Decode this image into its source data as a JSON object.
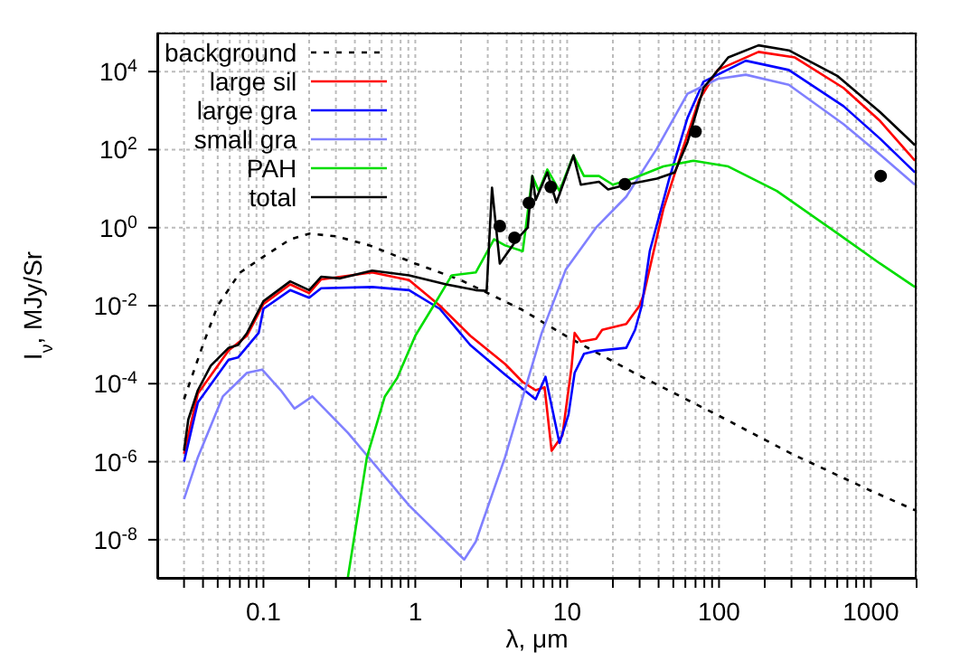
{
  "chart_data": {
    "type": "line",
    "xlabel": "λ, μm",
    "ylabel": "I$_{ν}$, MJy/Sr",
    "log": "xy",
    "grid": true,
    "legend": "top left",
    "xlim": [
      0.02,
      2000
    ],
    "ylim": [
      1e-09,
      100000
    ],
    "xticks": [
      {
        "value": 0.03,
        "label": null
      },
      {
        "value": 0.04,
        "label": null
      },
      {
        "value": 0.05,
        "label": null
      },
      {
        "value": 0.06,
        "label": null
      },
      {
        "value": 0.07,
        "label": null
      },
      {
        "value": 0.08,
        "label": null
      },
      {
        "value": 0.09,
        "label": null
      },
      0.1,
      {
        "value": 0.2,
        "label": null
      },
      {
        "value": 0.3,
        "label": null
      },
      {
        "value": 0.4,
        "label": null
      },
      {
        "value": 0.5,
        "label": null
      },
      {
        "value": 0.6,
        "label": null
      },
      {
        "value": 0.7,
        "label": null
      },
      {
        "value": 0.8,
        "label": null
      },
      {
        "value": 0.9,
        "label": null
      },
      1,
      {
        "value": 2,
        "label": null
      },
      {
        "value": 3,
        "label": null
      },
      {
        "value": 4,
        "label": null
      },
      {
        "value": 5,
        "label": null
      },
      {
        "value": 6,
        "label": null
      },
      {
        "value": 7,
        "label": null
      },
      {
        "value": 8,
        "label": null
      },
      {
        "value": 9,
        "label": null
      },
      10,
      {
        "value": 20,
        "label": null
      },
      {
        "value": 30,
        "label": null
      },
      {
        "value": 40,
        "label": null
      },
      {
        "value": 50,
        "label": null
      },
      {
        "value": 60,
        "label": null
      },
      {
        "value": 70,
        "label": null
      },
      {
        "value": 80,
        "label": null
      },
      {
        "value": 90,
        "label": null
      },
      100,
      {
        "value": 200,
        "label": null
      },
      {
        "value": 300,
        "label": null
      },
      {
        "value": 400,
        "label": null
      },
      {
        "value": 500,
        "label": null
      },
      {
        "value": 600,
        "label": null
      },
      {
        "value": 700,
        "label": null
      },
      {
        "value": 800,
        "label": null
      },
      {
        "value": 900,
        "label": null
      },
      1000,
      {
        "value": 2000,
        "label": null
      }
    ],
    "yticks": [
      {
        "value": 1e-08,
        "label": "10$^{-8}$"
      },
      {
        "value": 1e-06,
        "label": "10$^{-6}$"
      },
      {
        "value": 0.0001,
        "label": "10$^{-4}$"
      },
      {
        "value": 0.01,
        "label": "10$^{-2}$"
      },
      {
        "value": 1,
        "label": "10$^{0}$"
      },
      {
        "value": 100,
        "label": "10$^{2}$"
      },
      {
        "value": 10000,
        "label": "10$^{4}$"
      }
    ],
    "series": [
      {
        "name": "background",
        "color": "#000000",
        "line_style": "dashed",
        "x": [
          0.03,
          0.04,
          0.05,
          0.07,
          0.1,
          0.15,
          0.2,
          0.3,
          0.5,
          1,
          2,
          5,
          10,
          30,
          100,
          300,
          1000,
          2000
        ],
        "values": [
          4e-05,
          0.001,
          0.01,
          0.07,
          0.18,
          0.5,
          0.7,
          0.6,
          0.35,
          0.12,
          0.045,
          0.008,
          0.0016,
          0.00016,
          1.5e-05,
          1.6e-06,
          1.8e-07,
          5.5e-08
        ]
      },
      {
        "name": "large sil",
        "color": "#ff0000",
        "line_style": "solid",
        "x": [
          0.03,
          0.037,
          0.059,
          0.078,
          0.1,
          0.15,
          0.2,
          0.24,
          0.52,
          0.91,
          1.45,
          2.3,
          3.9,
          5.1,
          6.2,
          7.1,
          7.9,
          9.3,
          10.7,
          11.2,
          12.3,
          15.5,
          17,
          24.5,
          30,
          32,
          43,
          56,
          74,
          98,
          182,
          316,
          660,
          1150,
          1950
        ],
        "values": [
          1.6e-06,
          5.6e-05,
          0.00071,
          0.0017,
          0.011,
          0.035,
          0.021,
          0.047,
          0.071,
          0.045,
          0.01,
          0.0017,
          0.00032,
          0.00011,
          6.8e-05,
          8.1e-05,
          1.9e-06,
          4.7e-06,
          0.00028,
          0.002,
          0.0012,
          0.0014,
          0.0024,
          0.0034,
          0.01,
          0.02,
          3,
          74,
          1900,
          11000,
          32000,
          23000,
          3800,
          540,
          52
        ]
      },
      {
        "name": "large gra",
        "color": "#0000ff",
        "line_style": "solid",
        "x": [
          0.03,
          0.037,
          0.059,
          0.068,
          0.093,
          0.1,
          0.15,
          0.2,
          0.24,
          0.52,
          0.91,
          1.45,
          2.3,
          3.9,
          6.2,
          7.2,
          8.9,
          10.2,
          11.2,
          12.9,
          15.5,
          24.5,
          28,
          31,
          35,
          47,
          62,
          79,
          150,
          288,
          660,
          1150,
          1950
        ],
        "values": [
          1e-06,
          3.3e-05,
          0.00041,
          0.00047,
          0.002,
          0.0083,
          0.025,
          0.016,
          0.028,
          0.03,
          0.025,
          0.0083,
          0.00098,
          0.00017,
          4e-05,
          0.00015,
          3e-06,
          1.6e-05,
          0.00019,
          0.00058,
          0.00069,
          0.00083,
          0.0024,
          0.01,
          0.25,
          18,
          650,
          5500,
          19000,
          11000,
          1300,
          190,
          26
        ]
      },
      {
        "name": "small gra",
        "color": "#8080ff",
        "line_style": "solid",
        "x": [
          0.03,
          0.037,
          0.054,
          0.078,
          0.098,
          0.13,
          0.16,
          0.21,
          0.36,
          0.91,
          2.1,
          2.5,
          3.9,
          6.8,
          9.8,
          15.5,
          24.5,
          39,
          62,
          98,
          150,
          288,
          660,
          1150,
          1950
        ],
        "values": [
          1.1e-07,
          1.3e-06,
          4.7e-05,
          0.00019,
          0.00023,
          6.8e-05,
          2.3e-05,
          4.7e-05,
          5.5e-06,
          7.6e-08,
          3.1e-09,
          8.9e-09,
          1.3e-06,
          0.002,
          0.085,
          1,
          6.2,
          107,
          2700,
          6500,
          8300,
          4600,
          450,
          74,
          12.6
        ]
      },
      {
        "name": "PAH",
        "color": "#00dd00",
        "line_style": "solid",
        "x": [
          0.36,
          0.48,
          0.63,
          0.76,
          1,
          1.32,
          1.74,
          2.5,
          3.3,
          3.9,
          5.1,
          5.9,
          6.5,
          7.4,
          8.9,
          11,
          12.9,
          16.2,
          20,
          27,
          43,
          68,
          115,
          240,
          600,
          1150,
          1950
        ],
        "values": [
          1.1e-09,
          1.3e-06,
          4.7e-05,
          0.00014,
          0.0017,
          0.01,
          0.06,
          0.071,
          0.5,
          0.35,
          0.25,
          21,
          8.7,
          31,
          8.7,
          71,
          21,
          21,
          12.6,
          18,
          37,
          52,
          37,
          8.7,
          0.72,
          0.12,
          0.03
        ]
      },
      {
        "name": "total",
        "color": "#000000",
        "line_style": "solid",
        "x": [
          0.03,
          0.032,
          0.037,
          0.045,
          0.059,
          0.068,
          0.078,
          0.1,
          0.15,
          0.2,
          0.24,
          0.32,
          0.52,
          0.91,
          1.6,
          2.5,
          2.95,
          3.2,
          3.6,
          4.7,
          5.5,
          5.9,
          6.2,
          7.4,
          8.5,
          11,
          12.3,
          16.2,
          18.6,
          24.5,
          39,
          51,
          62,
          79,
          115,
          182,
          288,
          600,
          1150,
          1950
        ],
        "values": [
          1.9e-06,
          1.2e-05,
          6.8e-05,
          0.00029,
          0.00083,
          0.00098,
          0.002,
          0.013,
          0.042,
          0.025,
          0.055,
          0.05,
          0.079,
          0.06,
          0.035,
          0.025,
          0.024,
          10.5,
          0.12,
          0.52,
          1,
          21,
          5.1,
          26,
          4.4,
          71,
          12.6,
          15,
          9.5,
          12.6,
          18,
          26,
          155,
          3800,
          23000,
          47000,
          35000,
          7800,
          910,
          130
        ]
      },
      {
        "type": "scatter",
        "color": "#000000",
        "marker": "circle",
        "x": [
          3.6,
          4.5,
          5.6,
          7.8,
          24,
          70,
          1160
        ],
        "values": [
          1.1,
          0.55,
          4.3,
          11,
          13,
          290,
          21
        ]
      }
    ]
  }
}
